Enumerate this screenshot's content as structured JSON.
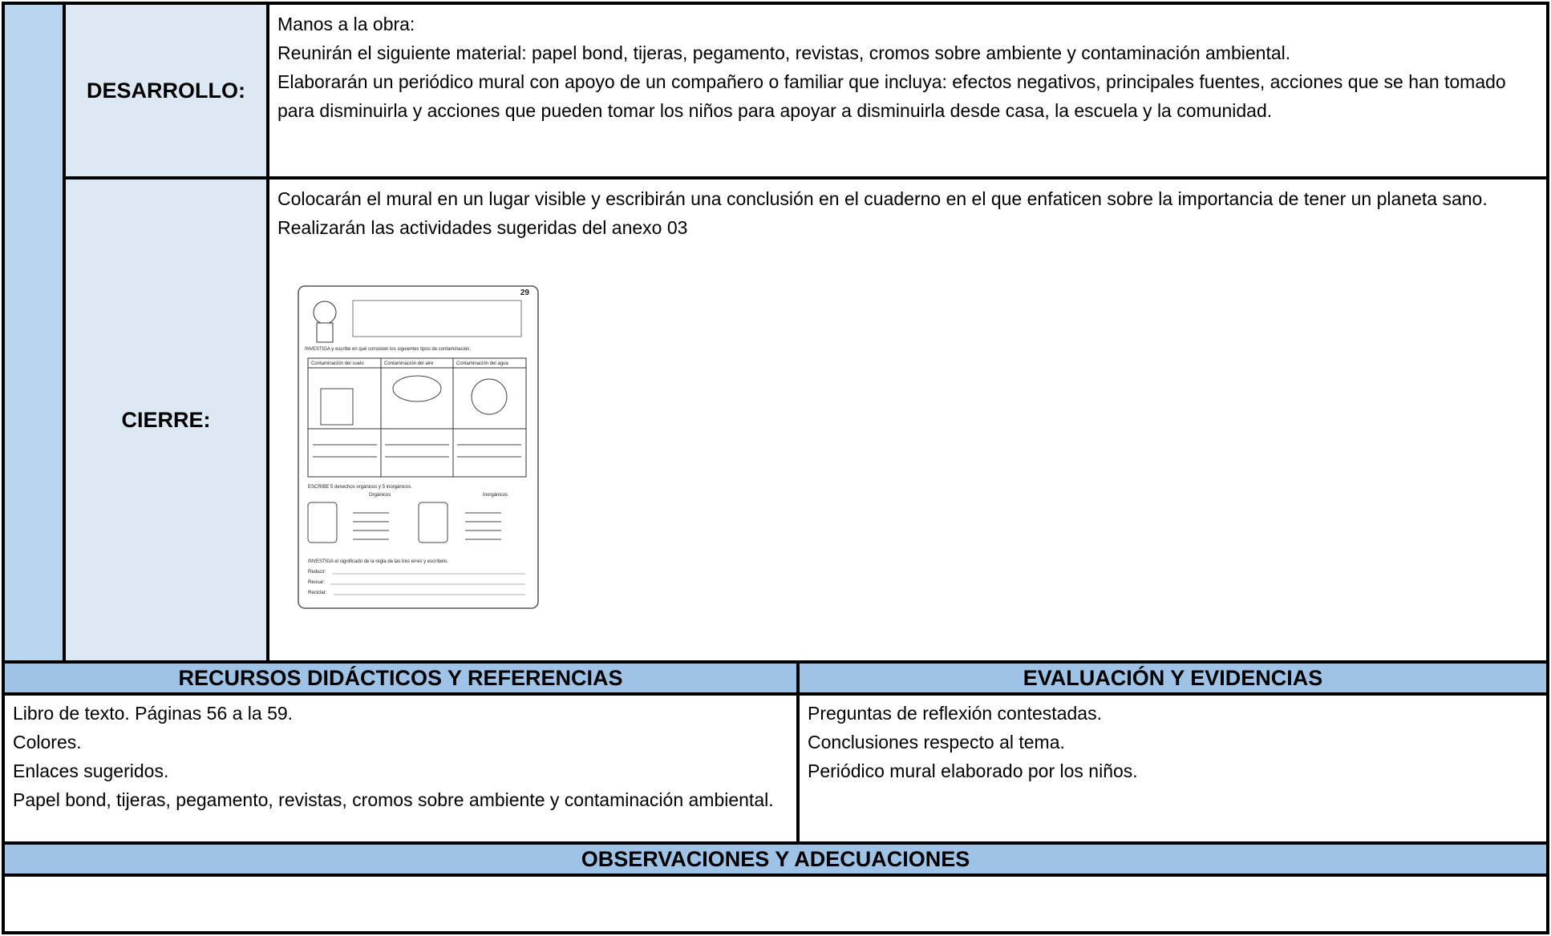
{
  "sections": [
    {
      "label": "DESARROLLO:",
      "lines": [
        "Manos a la obra:",
        "Reunirán el siguiente material: papel bond, tijeras, pegamento, revistas, cromos sobre ambiente y contaminación ambiental.",
        "Elaborarán un periódico mural con apoyo de un compañero o familiar que incluya: efectos negativos, principales fuentes, acciones que se han tomado para disminuirla y acciones que pueden tomar los niños para apoyar a disminuirla desde casa, la escuela y la comunidad."
      ]
    },
    {
      "label": "CIERRE:",
      "lines": [
        "Colocarán el mural en un lugar visible y escribirán una conclusión en el cuaderno en el que enfaticen sobre la importancia de tener un planeta sano.",
        "Realizarán las actividades sugeridas del anexo 03"
      ]
    }
  ],
  "worksheet": {
    "page_number": "29",
    "heading1": "INVESTIGA y escribe en qué consisten los siguientes tipos de contaminación.",
    "columns": [
      "Contaminación del suelo",
      "Contaminación del aire",
      "Contaminación del agua"
    ],
    "heading2": "ESCRIBE 5 desechos orgánicos y 5 inorgánicos.",
    "bins": [
      "Orgánicos",
      "Inorgánicos"
    ],
    "heading3": "INVESTIGA el significado de la regla de las tres erres y escríbelo.",
    "rules": [
      "Reducir:",
      "Reusar:",
      "Reciclar:"
    ]
  },
  "resources": {
    "title": "RECURSOS DIDÁCTICOS Y REFERENCIAS",
    "items": [
      "Libro de texto. Páginas 56 a la 59.",
      "Colores.",
      "Enlaces sugeridos.",
      "Papel bond, tijeras, pegamento, revistas, cromos sobre ambiente y contaminación ambiental."
    ]
  },
  "evaluation": {
    "title": "EVALUACIÓN Y EVIDENCIAS",
    "items": [
      "Preguntas de reflexión contestadas.",
      "Conclusiones respecto al tema.",
      "Periódico mural elaborado por los niños."
    ]
  },
  "observations": {
    "title": "OBSERVACIONES Y ADECUACIONES"
  }
}
